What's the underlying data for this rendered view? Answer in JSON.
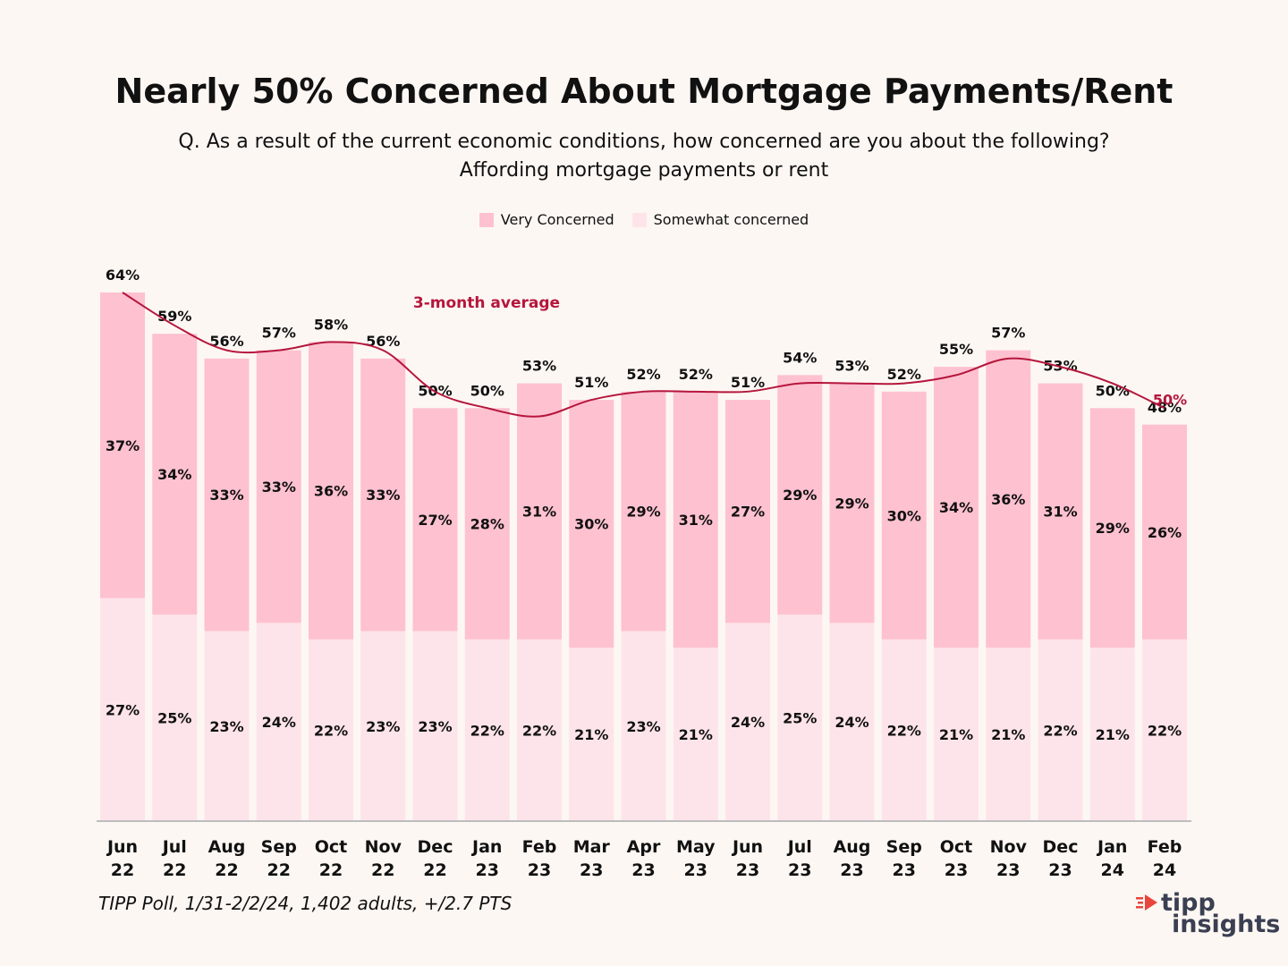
{
  "title": "Nearly 50% Concerned About Mortgage Payments/Rent",
  "subtitle_line1": "Q. As a result of the current economic conditions, how concerned are you about the following?",
  "subtitle_line2": "Affording mortgage payments or rent",
  "source": "TIPP Poll, 1/31-2/2/24, 1,402 adults, +/2.7 PTS",
  "logo": {
    "line1": "tipp",
    "line2": "insights"
  },
  "colors": {
    "very": "#fec1d0",
    "somewhat": "#fde4ea",
    "line": "#b5163c",
    "axis": "#bdbdbd",
    "text": "#111111"
  },
  "chart_data": {
    "type": "bar",
    "stacked": true,
    "title": "Nearly 50% Concerned About Mortgage Payments/Rent",
    "categories": [
      [
        "Jun",
        "22"
      ],
      [
        "Jul",
        "22"
      ],
      [
        "Aug",
        "22"
      ],
      [
        "Sep",
        "22"
      ],
      [
        "Oct",
        "22"
      ],
      [
        "Nov",
        "22"
      ],
      [
        "Dec",
        "22"
      ],
      [
        "Jan",
        "23"
      ],
      [
        "Feb",
        "23"
      ],
      [
        "Mar",
        "23"
      ],
      [
        "Apr",
        "23"
      ],
      [
        "May",
        "23"
      ],
      [
        "Jun",
        "23"
      ],
      [
        "Jul",
        "23"
      ],
      [
        "Aug",
        "23"
      ],
      [
        "Sep",
        "23"
      ],
      [
        "Oct",
        "23"
      ],
      [
        "Nov",
        "23"
      ],
      [
        "Dec",
        "23"
      ],
      [
        "Jan",
        "24"
      ],
      [
        "Feb",
        "24"
      ]
    ],
    "series": [
      {
        "name": "Somewhat concerned",
        "values": [
          27,
          25,
          23,
          24,
          22,
          23,
          23,
          22,
          22,
          21,
          23,
          21,
          24,
          25,
          24,
          22,
          21,
          21,
          22,
          21,
          22
        ]
      },
      {
        "name": "Very Concerned",
        "values": [
          37,
          34,
          33,
          33,
          36,
          33,
          27,
          28,
          31,
          30,
          29,
          31,
          27,
          29,
          29,
          30,
          34,
          36,
          31,
          29,
          26
        ]
      }
    ],
    "totals": [
      64,
      59,
      56,
      57,
      58,
      56,
      50,
      50,
      53,
      51,
      52,
      52,
      51,
      54,
      53,
      52,
      55,
      57,
      53,
      50,
      48
    ],
    "average_line": {
      "name": "3-month average",
      "values": [
        64,
        60,
        57,
        57,
        58,
        57,
        52,
        50,
        49,
        51,
        52,
        52,
        52,
        53,
        53,
        53,
        54,
        56,
        55,
        53,
        50
      ],
      "end_label": "50%"
    },
    "legend": [
      "Very Concerned",
      "Somewhat concerned"
    ],
    "legend_position": "top-center",
    "ylim": [
      0,
      64
    ]
  }
}
